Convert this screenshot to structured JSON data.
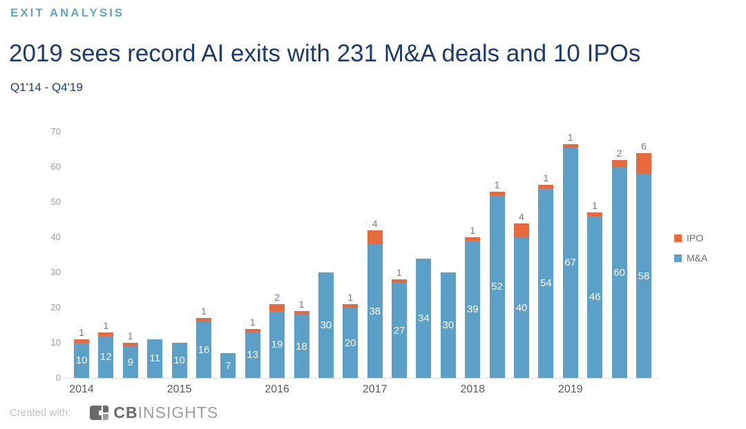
{
  "header": {
    "eyebrow": "EXIT ANALYSIS",
    "title": "2019 sees record AI exits with 231 M&A deals and 10 IPOs",
    "subtitle": "Q1'14 - Q4'19"
  },
  "chart_data": {
    "type": "bar",
    "stacked": true,
    "title": "2019 sees record AI exits with 231 M&A deals and 10 IPOs",
    "date_range": "Q1'14 - Q4'19",
    "categories": [
      "Q1'14",
      "Q2'14",
      "Q3'14",
      "Q4'14",
      "Q1'15",
      "Q2'15",
      "Q3'15",
      "Q4'15",
      "Q1'16",
      "Q2'16",
      "Q3'16",
      "Q4'16",
      "Q1'17",
      "Q2'17",
      "Q3'17",
      "Q4'17",
      "Q1'18",
      "Q2'18",
      "Q3'18",
      "Q4'18",
      "Q1'19",
      "Q2'19",
      "Q3'19",
      "Q4'19"
    ],
    "x_year_labels": {
      "0": "2014",
      "4": "2015",
      "8": "2016",
      "12": "2017",
      "16": "2018",
      "20": "2019"
    },
    "series": [
      {
        "name": "M&A",
        "color": "#5C9FC7",
        "values": [
          10,
          12,
          9,
          11,
          10,
          16,
          7,
          13,
          19,
          18,
          30,
          20,
          38,
          27,
          34,
          30,
          39,
          52,
          40,
          54,
          67,
          46,
          60,
          58
        ]
      },
      {
        "name": "IPO",
        "color": "#E8693C",
        "values": [
          1,
          1,
          1,
          0,
          0,
          1,
          0,
          1,
          2,
          1,
          0,
          1,
          4,
          1,
          0,
          0,
          1,
          1,
          4,
          1,
          1,
          1,
          2,
          6
        ]
      }
    ],
    "yticks": [
      0,
      10,
      20,
      30,
      40,
      50,
      60,
      70
    ],
    "ylim": [
      0,
      70
    ],
    "grid": false,
    "legend_position": "right",
    "bar_value_label_color": "#FDFDFD",
    "ipo_count_label_color": "#7A7A7A"
  },
  "legend": {
    "items": [
      {
        "label": "IPO",
        "color": "#E8693C"
      },
      {
        "label": "M&A",
        "color": "#5C9FC7"
      }
    ]
  },
  "footer": {
    "created_with": "Created with:",
    "logo_bold": "CB",
    "logo_light": "INSIGHTS"
  }
}
